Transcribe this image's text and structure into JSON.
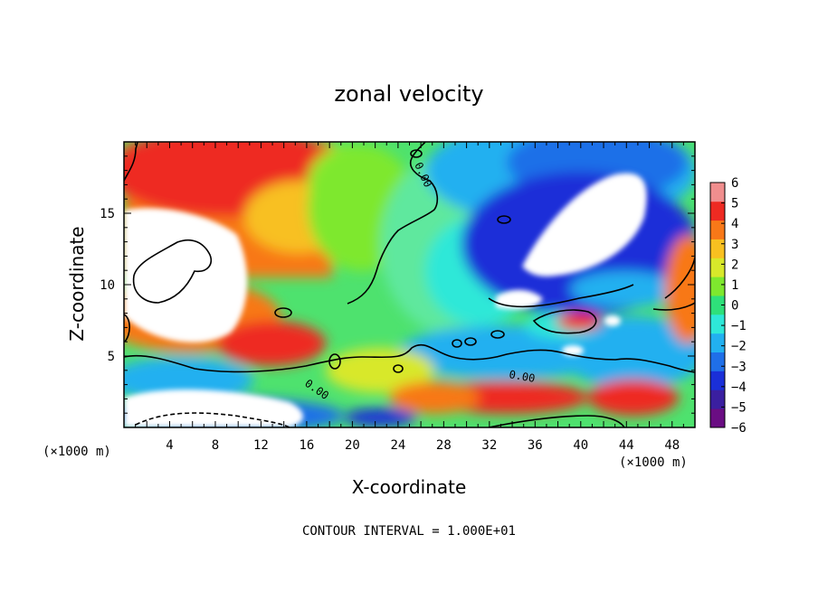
{
  "chart_data": {
    "type": "heatmap",
    "title": "zonal velocity",
    "xlabel": "X-coordinate",
    "ylabel": "Z-coordinate",
    "x_unit_note": "(×1000 m)",
    "y_unit_note": "(×1000 m)",
    "x_ticks": [
      4,
      8,
      12,
      16,
      20,
      24,
      28,
      32,
      36,
      40,
      44,
      48
    ],
    "y_ticks": [
      5,
      10,
      15
    ],
    "xlim": [
      0,
      50
    ],
    "ylim": [
      0,
      20
    ],
    "colorbar_ticks": [
      "6",
      "5",
      "4",
      "3",
      "2",
      "1",
      "0",
      "−1",
      "−2",
      "−3",
      "−4",
      "−5",
      "−6"
    ],
    "colorbar_range": [
      -6,
      6
    ],
    "contour_labels": [
      "0.00",
      "0.00",
      "0.00"
    ],
    "footer": "CONTOUR INTERVAL = 1.000E+01",
    "colors": [
      "#6a0d83",
      "#3a1fa0",
      "#1a2fd8",
      "#1f6fe8",
      "#22b0f0",
      "#2ee8d8",
      "#2ee07a",
      "#7ee82e",
      "#d8e82a",
      "#f8c020",
      "#f87818",
      "#ee2a22",
      "#f08e8e"
    ]
  }
}
